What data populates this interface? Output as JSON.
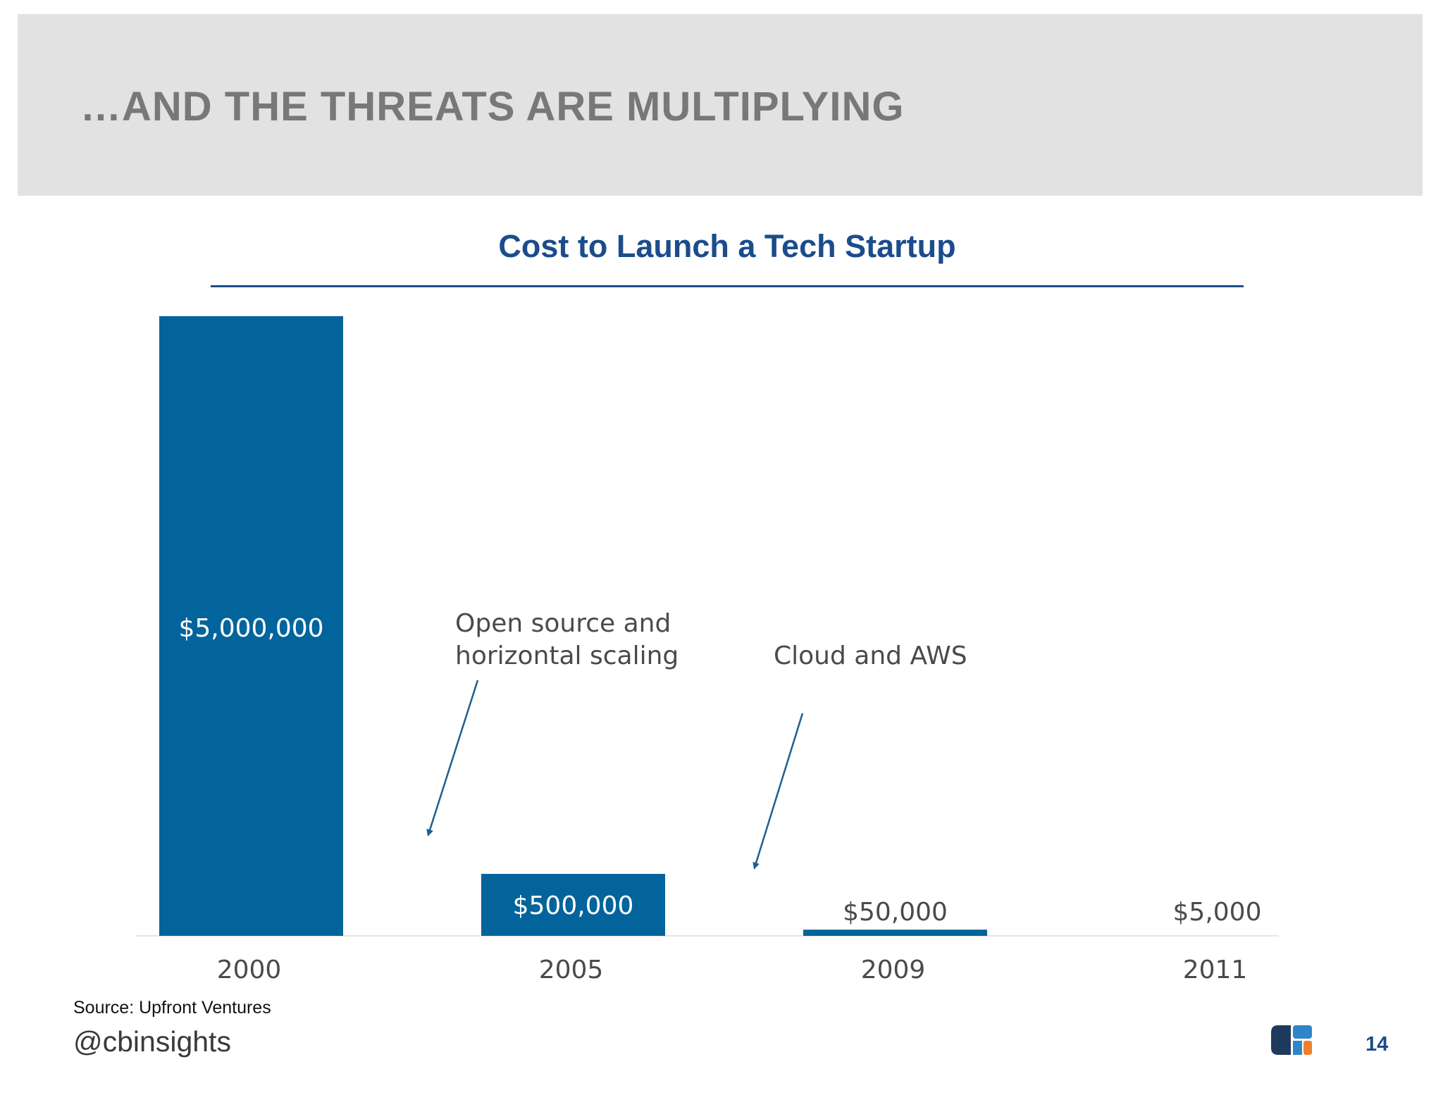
{
  "slide": {
    "title": "…AND THE THREATS ARE MULTIPLYING",
    "source": "Source: Upfront Ventures",
    "handle": "@cbinsights",
    "page_number": "14"
  },
  "colors": {
    "bar": "#03649c",
    "header_band": "#e2e2e2",
    "title_text": "#787878",
    "chart_title": "#1b4c8c",
    "annotation_arrow": "#1d5f8e",
    "logo_navy": "#1e3a5c",
    "logo_blue": "#2e86c8",
    "logo_orange": "#f07f2c"
  },
  "chart_data": {
    "type": "bar",
    "title": "Cost to Launch a Tech Startup",
    "xlabel": "",
    "ylabel": "",
    "categories": [
      "2000",
      "2005",
      "2009",
      "2011"
    ],
    "values": [
      5000000,
      500000,
      50000,
      5000
    ],
    "value_labels": [
      "$5,000,000",
      "$500,000",
      "$50,000",
      "$5,000"
    ],
    "ylim": [
      0,
      5000000
    ],
    "grid": false,
    "legend": "none",
    "annotations": [
      {
        "lines": [
          "Open source and",
          "horizontal scaling"
        ],
        "points_to": "between 2000 and 2005"
      },
      {
        "lines": [
          "Cloud and AWS"
        ],
        "points_to": "between 2005 and 2009"
      }
    ]
  }
}
